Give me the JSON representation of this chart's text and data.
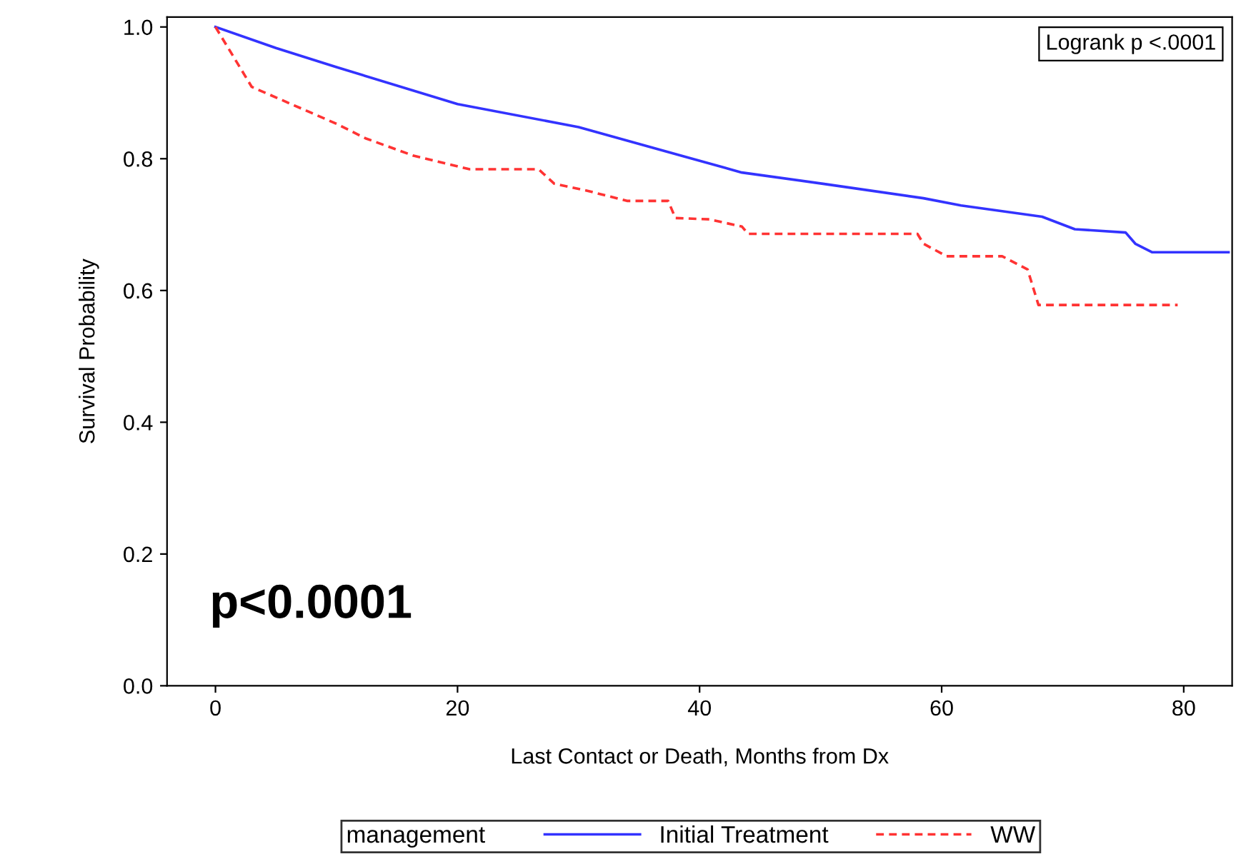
{
  "chart_data": {
    "type": "line",
    "xlabel": "Last Contact or Death, Months from Dx",
    "ylabel": "Survival Probability",
    "legend_title": "management",
    "legend": "bottom",
    "xlim": [
      -4,
      84
    ],
    "ylim": [
      0,
      1.015
    ],
    "xticks": [
      0,
      20,
      40,
      60,
      80
    ],
    "yticks": [
      {
        "value": 0,
        "label": "0.0"
      },
      {
        "value": 0.2,
        "label": "0.2"
      },
      {
        "value": 0.4,
        "label": "0.4"
      },
      {
        "value": 0.6,
        "label": "0.6"
      },
      {
        "value": 0.8,
        "label": "0.8"
      },
      {
        "value": 1,
        "label": "1.0"
      }
    ],
    "grid": false,
    "annotations": [
      "Logrank p <.0001",
      "p<0.0001"
    ],
    "series": [
      {
        "name": "Initial Treatment",
        "color": "#3333ff",
        "line_style": "solid",
        "x": [
          0,
          5,
          10,
          20,
          30,
          38.8,
          43.5,
          50.2,
          58.5,
          61.6,
          68.3,
          71,
          75.2,
          76,
          77.4,
          83.7
        ],
        "values": [
          1.0,
          0.968,
          0.939,
          0.883,
          0.848,
          0.803,
          0.779,
          0.762,
          0.74,
          0.729,
          0.712,
          0.693,
          0.688,
          0.671,
          0.658,
          0.658
        ]
      },
      {
        "name": "WW",
        "color": "#ff3333",
        "line_style": "dashed",
        "x": [
          0,
          3,
          6.5,
          10,
          12.4,
          16.3,
          21,
          26.7,
          28,
          30.8,
          34,
          37.4,
          38,
          40.8,
          43.5,
          44,
          58,
          58.5,
          60.4,
          65,
          67.1,
          68,
          79.5
        ],
        "values": [
          1.0,
          0.909,
          0.881,
          0.853,
          0.831,
          0.805,
          0.784,
          0.784,
          0.762,
          0.751,
          0.736,
          0.736,
          0.71,
          0.708,
          0.697,
          0.686,
          0.686,
          0.671,
          0.652,
          0.652,
          0.632,
          0.578,
          0.578
        ]
      }
    ]
  }
}
